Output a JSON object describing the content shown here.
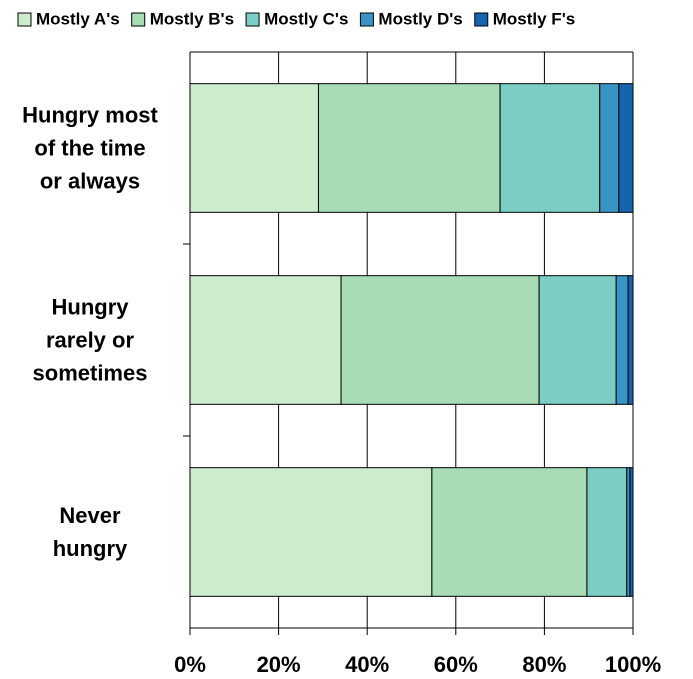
{
  "chart_data": {
    "type": "stacked-bar-horizontal",
    "categories": [
      "Hungry most\nof the time\nor always",
      "Hungry\nrarely or\nsometimes",
      "Never\nhungry"
    ],
    "series": [
      {
        "name": "Mostly A's",
        "color": "#cdeccb",
        "values": [
          29,
          34.1,
          54.6
        ]
      },
      {
        "name": "Mostly B's",
        "color": "#a8dcb5",
        "values": [
          41,
          44.7,
          35
        ]
      },
      {
        "name": "Mostly C's",
        "color": "#7ccdc4",
        "values": [
          22.5,
          17.4,
          9
        ]
      },
      {
        "name": "Mostly D's",
        "color": "#3b94c6",
        "values": [
          4.3,
          2.7,
          0.7
        ]
      },
      {
        "name": "Mostly F's",
        "color": "#1565ae",
        "values": [
          3.2,
          1.1,
          0.7
        ]
      }
    ],
    "xlim": [
      0,
      100
    ],
    "xticks": [
      {
        "value": 0,
        "label": "0%"
      },
      {
        "value": 20,
        "label": "20%"
      },
      {
        "value": 40,
        "label": "40%"
      },
      {
        "value": 60,
        "label": "60%"
      },
      {
        "value": 80,
        "label": "80%"
      },
      {
        "value": 100,
        "label": "100%"
      }
    ],
    "grid": true,
    "legend": "top"
  }
}
